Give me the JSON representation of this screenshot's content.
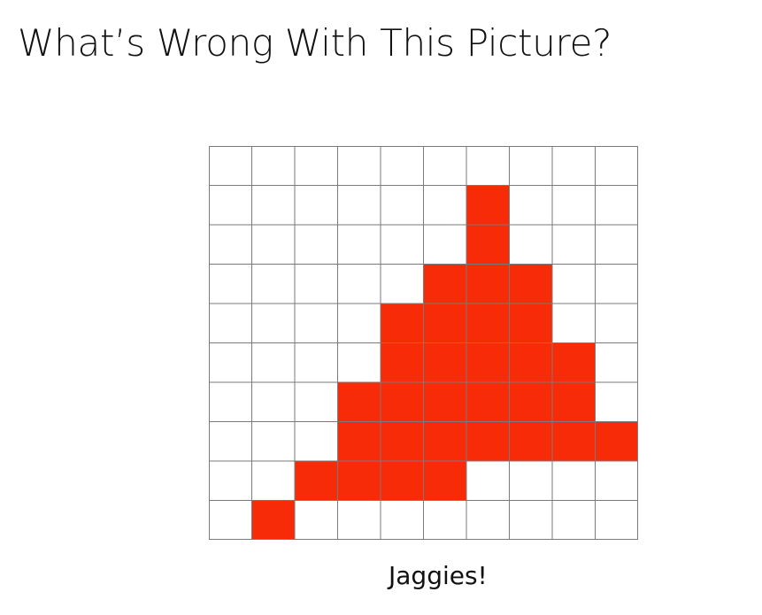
{
  "slide": {
    "title": "What’s Wrong With This Picture?",
    "caption": "Jaggies!"
  },
  "grid": {
    "columns": 10,
    "rows": 10,
    "fill_color": "#f82b08",
    "line_color": "#7a7a7a",
    "filled_cells": [
      [
        1,
        6
      ],
      [
        2,
        6
      ],
      [
        3,
        5
      ],
      [
        3,
        6
      ],
      [
        3,
        7
      ],
      [
        4,
        4
      ],
      [
        4,
        5
      ],
      [
        4,
        6
      ],
      [
        4,
        7
      ],
      [
        5,
        4
      ],
      [
        5,
        5
      ],
      [
        5,
        6
      ],
      [
        5,
        7
      ],
      [
        5,
        8
      ],
      [
        6,
        3
      ],
      [
        6,
        4
      ],
      [
        6,
        5
      ],
      [
        6,
        6
      ],
      [
        6,
        7
      ],
      [
        6,
        8
      ],
      [
        7,
        3
      ],
      [
        7,
        4
      ],
      [
        7,
        5
      ],
      [
        7,
        6
      ],
      [
        7,
        7
      ],
      [
        7,
        8
      ],
      [
        7,
        9
      ],
      [
        8,
        2
      ],
      [
        8,
        3
      ],
      [
        8,
        4
      ],
      [
        8,
        5
      ],
      [
        9,
        1
      ]
    ]
  }
}
